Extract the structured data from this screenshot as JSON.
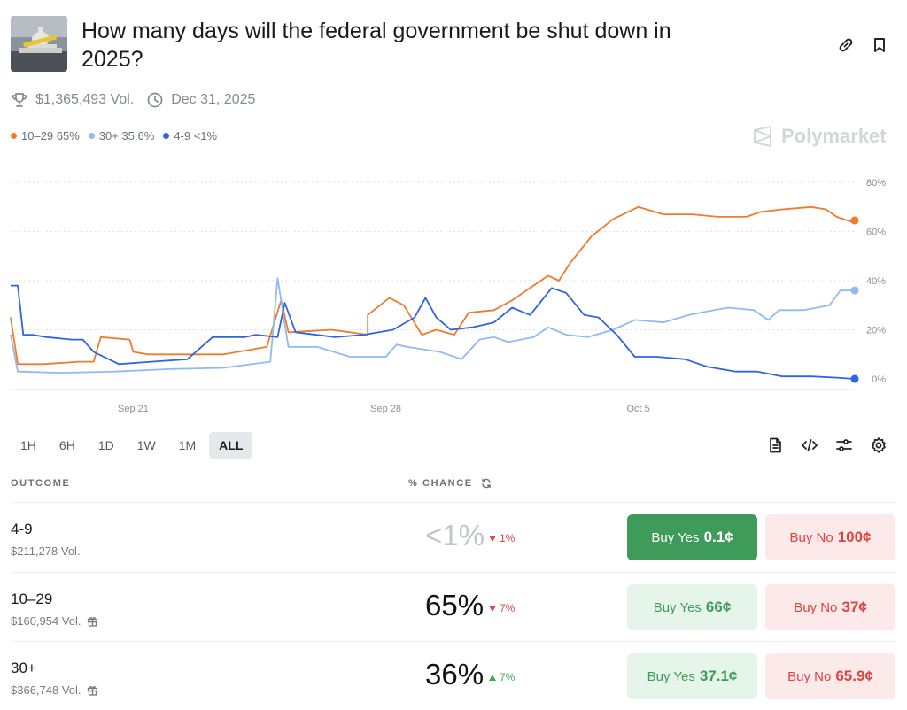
{
  "market": {
    "title": "How many days will the federal government be shut down in 2025?",
    "volume": "$1,365,493 Vol.",
    "end_date": "Dec 31, 2025"
  },
  "legend": [
    {
      "label": "10–29 65%",
      "color": "#f07b2a"
    },
    {
      "label": "30+ 35.6%",
      "color": "#8fbaf4"
    },
    {
      "label": "4-9 <1%",
      "color": "#2f64e3"
    }
  ],
  "brand": "Polymarket",
  "timeframes": [
    "1H",
    "6H",
    "1D",
    "1W",
    "1M",
    "ALL"
  ],
  "active_timeframe": "ALL",
  "table": {
    "outcome_header": "OUTCOME",
    "chance_header": "% CHANCE"
  },
  "outcomes": [
    {
      "name": "4-9",
      "volume": "$211,278 Vol.",
      "chance": "<1%",
      "change": "1%",
      "direction": "down",
      "buy_yes_label": "Buy Yes",
      "buy_yes_price": "0.1¢",
      "buy_no_label": "Buy No",
      "buy_no_price": "100¢"
    },
    {
      "name": "10–29",
      "volume": "$160,954 Vol.",
      "chance": "65%",
      "change": "7%",
      "direction": "down",
      "buy_yes_label": "Buy Yes",
      "buy_yes_price": "66¢",
      "buy_no_label": "Buy No",
      "buy_no_price": "37¢"
    },
    {
      "name": "30+",
      "volume": "$366,748 Vol.",
      "chance": "36%",
      "change": "7%",
      "direction": "up",
      "buy_yes_label": "Buy Yes",
      "buy_yes_price": "37.1¢",
      "buy_no_label": "Buy No",
      "buy_no_price": "65.9¢"
    }
  ],
  "chart_data": {
    "type": "line",
    "x_ticks": [
      {
        "day": 21,
        "label": "Sep 21"
      },
      {
        "day": 28,
        "label": "Sep 28"
      },
      {
        "day": 35,
        "label": "Oct 5"
      }
    ],
    "y_ticks": [
      "0%",
      "20%",
      "40%",
      "60%",
      "80%"
    ],
    "ylim": [
      0,
      80
    ],
    "xlim": [
      17.6,
      41.0
    ],
    "y_axis_side": "right",
    "grid": true,
    "series": [
      {
        "name": "10–29",
        "color": "#f07b2a",
        "points": [
          [
            17.6,
            25
          ],
          [
            17.8,
            6
          ],
          [
            18.5,
            6
          ],
          [
            19.5,
            7
          ],
          [
            19.9,
            7
          ],
          [
            20.1,
            17
          ],
          [
            20.9,
            16
          ],
          [
            21.0,
            11
          ],
          [
            21.4,
            10
          ],
          [
            22.5,
            10
          ],
          [
            23.5,
            10
          ],
          [
            24.7,
            13
          ],
          [
            25.1,
            32
          ],
          [
            25.3,
            19
          ],
          [
            26.5,
            20
          ],
          [
            27.5,
            18
          ],
          [
            27.5,
            26
          ],
          [
            28.1,
            33
          ],
          [
            28.5,
            30
          ],
          [
            29.0,
            18
          ],
          [
            29.4,
            20
          ],
          [
            29.9,
            18
          ],
          [
            30.3,
            27
          ],
          [
            31.0,
            28
          ],
          [
            31.5,
            32
          ],
          [
            32.0,
            37
          ],
          [
            32.5,
            42
          ],
          [
            32.8,
            40
          ],
          [
            33.1,
            47
          ],
          [
            33.7,
            58
          ],
          [
            34.3,
            65
          ],
          [
            35.0,
            70
          ],
          [
            35.7,
            67
          ],
          [
            36.5,
            67
          ],
          [
            37.2,
            66
          ],
          [
            38.0,
            66
          ],
          [
            38.4,
            68
          ],
          [
            39.0,
            69
          ],
          [
            39.8,
            70
          ],
          [
            40.2,
            69
          ],
          [
            40.5,
            66
          ],
          [
            40.9,
            64
          ],
          [
            41.0,
            64.5
          ]
        ]
      },
      {
        "name": "30+",
        "color": "#8fbaf4",
        "points": [
          [
            17.6,
            18
          ],
          [
            17.8,
            3
          ],
          [
            19.0,
            2.5
          ],
          [
            20.5,
            3
          ],
          [
            22.0,
            4
          ],
          [
            23.5,
            4.5
          ],
          [
            24.8,
            7
          ],
          [
            25.0,
            41
          ],
          [
            25.3,
            13
          ],
          [
            26.1,
            13
          ],
          [
            27.0,
            9
          ],
          [
            28.0,
            9
          ],
          [
            28.3,
            14
          ],
          [
            28.6,
            13
          ],
          [
            29.5,
            11
          ],
          [
            30.1,
            8
          ],
          [
            30.6,
            16
          ],
          [
            31.0,
            17
          ],
          [
            31.4,
            15
          ],
          [
            32.1,
            17
          ],
          [
            32.5,
            21
          ],
          [
            33.0,
            18
          ],
          [
            33.6,
            17
          ],
          [
            34.3,
            20
          ],
          [
            34.9,
            24
          ],
          [
            35.7,
            23
          ],
          [
            36.4,
            26
          ],
          [
            37.1,
            28
          ],
          [
            37.5,
            29
          ],
          [
            38.2,
            28
          ],
          [
            38.6,
            24
          ],
          [
            38.9,
            28
          ],
          [
            39.6,
            28
          ],
          [
            40.3,
            30
          ],
          [
            40.6,
            36
          ],
          [
            41.0,
            36
          ]
        ]
      },
      {
        "name": "4-9",
        "color": "#2f64e3",
        "points": [
          [
            17.6,
            38
          ],
          [
            17.8,
            38
          ],
          [
            17.95,
            18
          ],
          [
            18.2,
            18
          ],
          [
            18.6,
            17
          ],
          [
            19.3,
            16
          ],
          [
            19.6,
            16
          ],
          [
            19.9,
            11
          ],
          [
            20.6,
            6
          ],
          [
            21.5,
            7
          ],
          [
            22.5,
            8
          ],
          [
            23.2,
            17
          ],
          [
            24.1,
            17
          ],
          [
            24.4,
            18
          ],
          [
            25.0,
            17
          ],
          [
            25.2,
            31
          ],
          [
            25.5,
            19
          ],
          [
            26.6,
            17
          ],
          [
            27.4,
            18
          ],
          [
            28.2,
            20
          ],
          [
            28.8,
            25
          ],
          [
            29.1,
            33
          ],
          [
            29.4,
            25
          ],
          [
            29.8,
            20
          ],
          [
            30.4,
            21
          ],
          [
            31.0,
            23
          ],
          [
            31.5,
            29
          ],
          [
            32.0,
            26
          ],
          [
            32.6,
            37
          ],
          [
            33.0,
            35
          ],
          [
            33.5,
            26
          ],
          [
            33.9,
            25
          ],
          [
            34.4,
            18
          ],
          [
            34.9,
            9
          ],
          [
            35.5,
            9
          ],
          [
            36.3,
            8
          ],
          [
            36.9,
            5
          ],
          [
            37.7,
            3
          ],
          [
            38.3,
            3
          ],
          [
            39.0,
            1
          ],
          [
            39.8,
            1
          ],
          [
            40.5,
            0.5
          ],
          [
            41.0,
            0
          ]
        ]
      }
    ]
  }
}
